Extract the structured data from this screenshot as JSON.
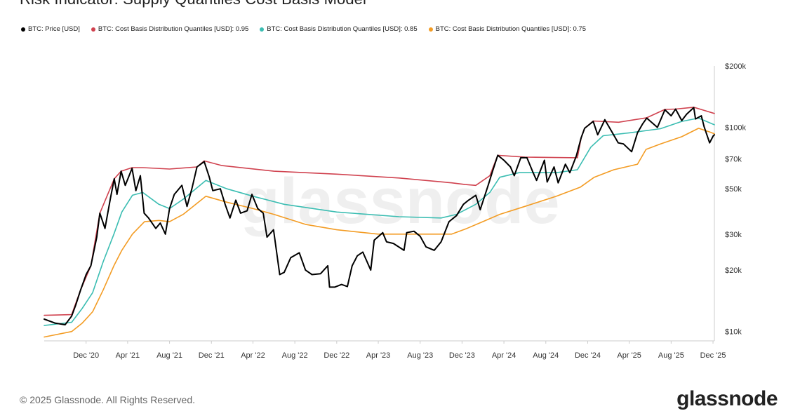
{
  "chart_data": {
    "type": "line",
    "title": "Risk Indicator: Supply Quantiles Cost Basis Model",
    "y_scale": "log",
    "ylim": [
      9000,
      200000
    ],
    "xlim": [
      "2020-08-01",
      "2025-12-05"
    ],
    "y_ticks": [
      {
        "value": 10000,
        "label": "$10k"
      },
      {
        "value": 20000,
        "label": "$20k"
      },
      {
        "value": 30000,
        "label": "$30k"
      },
      {
        "value": 50000,
        "label": "$50k"
      },
      {
        "value": 70000,
        "label": "$70k"
      },
      {
        "value": 100000,
        "label": "$100k"
      },
      {
        "value": 200000,
        "label": "$200k"
      }
    ],
    "x_ticks": [
      {
        "date": "2020-12-01",
        "label": "Dec '20"
      },
      {
        "date": "2021-04-01",
        "label": "Apr '21"
      },
      {
        "date": "2021-08-01",
        "label": "Aug '21"
      },
      {
        "date": "2021-12-01",
        "label": "Dec '21"
      },
      {
        "date": "2022-04-01",
        "label": "Apr '22"
      },
      {
        "date": "2022-08-01",
        "label": "Aug '22"
      },
      {
        "date": "2022-12-01",
        "label": "Dec '22"
      },
      {
        "date": "2023-04-01",
        "label": "Apr '23"
      },
      {
        "date": "2023-08-01",
        "label": "Aug '23"
      },
      {
        "date": "2023-12-01",
        "label": "Dec '23"
      },
      {
        "date": "2024-04-01",
        "label": "Apr '24"
      },
      {
        "date": "2024-08-01",
        "label": "Aug '24"
      },
      {
        "date": "2024-12-01",
        "label": "Dec '24"
      },
      {
        "date": "2025-04-01",
        "label": "Apr '25"
      },
      {
        "date": "2025-08-01",
        "label": "Aug '25"
      },
      {
        "date": "2025-12-01",
        "label": "Dec '25"
      }
    ],
    "series": [
      {
        "name": "BTC: Price [USD]",
        "color": "#000000",
        "points": [
          [
            "2020-08-01",
            11500
          ],
          [
            "2020-09-01",
            11000
          ],
          [
            "2020-10-01",
            10800
          ],
          [
            "2020-10-20",
            11900
          ],
          [
            "2020-11-01",
            13500
          ],
          [
            "2020-11-15",
            16000
          ],
          [
            "2020-12-01",
            19000
          ],
          [
            "2020-12-15",
            21000
          ],
          [
            "2021-01-01",
            29000
          ],
          [
            "2021-01-10",
            38000
          ],
          [
            "2021-01-25",
            32000
          ],
          [
            "2021-02-10",
            45000
          ],
          [
            "2021-02-21",
            56000
          ],
          [
            "2021-03-01",
            47000
          ],
          [
            "2021-03-13",
            61000
          ],
          [
            "2021-03-25",
            52000
          ],
          [
            "2021-04-14",
            63000
          ],
          [
            "2021-04-25",
            49000
          ],
          [
            "2021-05-08",
            58000
          ],
          [
            "2021-05-19",
            38000
          ],
          [
            "2021-06-01",
            36000
          ],
          [
            "2021-06-22",
            32000
          ],
          [
            "2021-07-05",
            34000
          ],
          [
            "2021-07-20",
            30000
          ],
          [
            "2021-08-01",
            40000
          ],
          [
            "2021-08-15",
            47000
          ],
          [
            "2021-09-06",
            52000
          ],
          [
            "2021-09-21",
            41000
          ],
          [
            "2021-10-05",
            50000
          ],
          [
            "2021-10-20",
            64000
          ],
          [
            "2021-11-10",
            68000
          ],
          [
            "2021-11-25",
            57000
          ],
          [
            "2021-12-05",
            49000
          ],
          [
            "2021-12-27",
            50000
          ],
          [
            "2022-01-10",
            42000
          ],
          [
            "2022-01-24",
            36000
          ],
          [
            "2022-02-10",
            44000
          ],
          [
            "2022-02-24",
            38000
          ],
          [
            "2022-03-15",
            39000
          ],
          [
            "2022-03-29",
            47000
          ],
          [
            "2022-04-15",
            40000
          ],
          [
            "2022-05-01",
            38000
          ],
          [
            "2022-05-12",
            29000
          ],
          [
            "2022-05-31",
            31500
          ],
          [
            "2022-06-18",
            19000
          ],
          [
            "2022-07-01",
            19500
          ],
          [
            "2022-07-20",
            23000
          ],
          [
            "2022-08-14",
            24300
          ],
          [
            "2022-09-01",
            20000
          ],
          [
            "2022-09-20",
            19000
          ],
          [
            "2022-10-15",
            19200
          ],
          [
            "2022-11-05",
            21000
          ],
          [
            "2022-11-10",
            16500
          ],
          [
            "2022-11-25",
            16500
          ],
          [
            "2022-12-15",
            17000
          ],
          [
            "2023-01-01",
            16600
          ],
          [
            "2023-01-15",
            21000
          ],
          [
            "2023-01-30",
            23500
          ],
          [
            "2023-02-15",
            24500
          ],
          [
            "2023-03-10",
            20000
          ],
          [
            "2023-03-20",
            28000
          ],
          [
            "2023-04-14",
            30500
          ],
          [
            "2023-04-25",
            27500
          ],
          [
            "2023-05-15",
            27000
          ],
          [
            "2023-06-15",
            25000
          ],
          [
            "2023-06-23",
            30500
          ],
          [
            "2023-07-14",
            31000
          ],
          [
            "2023-08-01",
            29300
          ],
          [
            "2023-08-18",
            26000
          ],
          [
            "2023-09-11",
            25000
          ],
          [
            "2023-10-01",
            27500
          ],
          [
            "2023-10-24",
            34500
          ],
          [
            "2023-11-15",
            37000
          ],
          [
            "2023-12-05",
            42000
          ],
          [
            "2023-12-20",
            44000
          ],
          [
            "2024-01-10",
            46500
          ],
          [
            "2024-01-23",
            39500
          ],
          [
            "2024-02-15",
            52000
          ],
          [
            "2024-02-28",
            61000
          ],
          [
            "2024-03-14",
            73000
          ],
          [
            "2024-04-01",
            69000
          ],
          [
            "2024-04-20",
            64000
          ],
          [
            "2024-05-01",
            58000
          ],
          [
            "2024-05-20",
            71000
          ],
          [
            "2024-06-07",
            71000
          ],
          [
            "2024-06-25",
            60000
          ],
          [
            "2024-07-05",
            55000
          ],
          [
            "2024-07-28",
            69000
          ],
          [
            "2024-08-05",
            54000
          ],
          [
            "2024-08-25",
            64000
          ],
          [
            "2024-09-06",
            53500
          ],
          [
            "2024-09-27",
            66000
          ],
          [
            "2024-10-10",
            60000
          ],
          [
            "2024-10-29",
            72500
          ],
          [
            "2024-11-12",
            89000
          ],
          [
            "2024-11-22",
            99000
          ],
          [
            "2024-12-05",
            103000
          ],
          [
            "2024-12-17",
            107000
          ],
          [
            "2024-12-30",
            92000
          ],
          [
            "2025-01-20",
            109000
          ],
          [
            "2025-02-05",
            98000
          ],
          [
            "2025-02-28",
            84000
          ],
          [
            "2025-03-15",
            83000
          ],
          [
            "2025-04-08",
            76000
          ],
          [
            "2025-04-25",
            94000
          ],
          [
            "2025-05-10",
            104000
          ],
          [
            "2025-05-22",
            111000
          ],
          [
            "2025-06-22",
            100000
          ],
          [
            "2025-07-14",
            122000
          ],
          [
            "2025-08-01",
            114000
          ],
          [
            "2025-08-14",
            123000
          ],
          [
            "2025-09-01",
            108000
          ],
          [
            "2025-09-15",
            116000
          ],
          [
            "2025-10-06",
            125000
          ],
          [
            "2025-10-11",
            110000
          ],
          [
            "2025-10-28",
            114000
          ],
          [
            "2025-11-05",
            101000
          ],
          [
            "2025-11-21",
            84000
          ],
          [
            "2025-12-02",
            91000
          ],
          [
            "2025-12-05",
            92000
          ]
        ]
      },
      {
        "name": "BTC: Cost Basis Distribution Quantiles [USD]: 0.95",
        "color": "#d0424f",
        "points": [
          [
            "2020-08-01",
            12000
          ],
          [
            "2020-10-20",
            12100
          ],
          [
            "2020-11-15",
            16000
          ],
          [
            "2020-12-15",
            21000
          ],
          [
            "2021-01-10",
            38000
          ],
          [
            "2021-02-21",
            56000
          ],
          [
            "2021-03-13",
            61000
          ],
          [
            "2021-04-14",
            63500
          ],
          [
            "2021-05-15",
            63500
          ],
          [
            "2021-08-01",
            62500
          ],
          [
            "2021-10-20",
            64000
          ],
          [
            "2021-11-10",
            68500
          ],
          [
            "2022-01-01",
            65000
          ],
          [
            "2022-06-01",
            61000
          ],
          [
            "2022-12-01",
            59000
          ],
          [
            "2023-06-01",
            56500
          ],
          [
            "2023-11-01",
            53500
          ],
          [
            "2023-12-10",
            52500
          ],
          [
            "2024-01-10",
            52000
          ],
          [
            "2024-02-20",
            58000
          ],
          [
            "2024-03-14",
            73000
          ],
          [
            "2024-06-01",
            71500
          ],
          [
            "2024-11-01",
            71000
          ],
          [
            "2024-11-12",
            89000
          ],
          [
            "2024-11-22",
            99000
          ],
          [
            "2024-12-17",
            107500
          ],
          [
            "2025-03-01",
            106000
          ],
          [
            "2025-05-22",
            111500
          ],
          [
            "2025-07-14",
            122500
          ],
          [
            "2025-08-14",
            123000
          ],
          [
            "2025-10-06",
            125500
          ],
          [
            "2025-12-05",
            117000
          ]
        ]
      },
      {
        "name": "BTC: Cost Basis Distribution Quantiles [USD]: 0.85",
        "color": "#3bbdb2",
        "points": [
          [
            "2020-08-01",
            10700
          ],
          [
            "2020-10-20",
            11100
          ],
          [
            "2020-11-20",
            13000
          ],
          [
            "2020-12-20",
            15500
          ],
          [
            "2021-01-20",
            22000
          ],
          [
            "2021-02-20",
            30000
          ],
          [
            "2021-03-15",
            38500
          ],
          [
            "2021-04-15",
            46500
          ],
          [
            "2021-05-15",
            48000
          ],
          [
            "2021-07-01",
            42000
          ],
          [
            "2021-08-01",
            40000
          ],
          [
            "2021-09-10",
            44500
          ],
          [
            "2021-11-15",
            55000
          ],
          [
            "2022-01-15",
            50000
          ],
          [
            "2022-04-01",
            46000
          ],
          [
            "2022-07-01",
            42000
          ],
          [
            "2022-12-01",
            38500
          ],
          [
            "2023-06-01",
            36500
          ],
          [
            "2023-10-01",
            36000
          ],
          [
            "2023-11-15",
            37500
          ],
          [
            "2024-01-10",
            42000
          ],
          [
            "2024-02-20",
            48000
          ],
          [
            "2024-03-20",
            57000
          ],
          [
            "2024-05-15",
            60000
          ],
          [
            "2024-09-01",
            60000
          ],
          [
            "2024-11-01",
            62000
          ],
          [
            "2024-12-10",
            80000
          ],
          [
            "2025-01-15",
            91000
          ],
          [
            "2025-04-01",
            94000
          ],
          [
            "2025-07-01",
            98500
          ],
          [
            "2025-09-01",
            107000
          ],
          [
            "2025-10-20",
            111000
          ],
          [
            "2025-12-05",
            103000
          ]
        ]
      },
      {
        "name": "BTC: Cost Basis Distribution Quantiles [USD]: 0.75",
        "color": "#f39c24",
        "points": [
          [
            "2020-08-01",
            9400
          ],
          [
            "2020-10-20",
            10000
          ],
          [
            "2020-11-20",
            11000
          ],
          [
            "2020-12-20",
            12500
          ],
          [
            "2021-01-20",
            16000
          ],
          [
            "2021-02-20",
            21000
          ],
          [
            "2021-03-15",
            25000
          ],
          [
            "2021-04-15",
            30000
          ],
          [
            "2021-05-20",
            34500
          ],
          [
            "2021-07-01",
            35000
          ],
          [
            "2021-08-01",
            34500
          ],
          [
            "2021-09-10",
            37500
          ],
          [
            "2021-11-15",
            46000
          ],
          [
            "2022-01-15",
            43000
          ],
          [
            "2022-04-01",
            40000
          ],
          [
            "2022-06-01",
            37500
          ],
          [
            "2022-09-01",
            33500
          ],
          [
            "2022-12-01",
            31500
          ],
          [
            "2023-04-01",
            30000
          ],
          [
            "2023-08-01",
            30000
          ],
          [
            "2023-11-01",
            30000
          ],
          [
            "2023-12-15",
            32000
          ],
          [
            "2024-01-30",
            34500
          ],
          [
            "2024-03-20",
            37500
          ],
          [
            "2024-06-01",
            41000
          ],
          [
            "2024-09-01",
            46000
          ],
          [
            "2024-11-10",
            51000
          ],
          [
            "2024-12-20",
            57000
          ],
          [
            "2025-02-15",
            62000
          ],
          [
            "2025-04-25",
            66000
          ],
          [
            "2025-05-20",
            78000
          ],
          [
            "2025-07-01",
            83000
          ],
          [
            "2025-09-01",
            90000
          ],
          [
            "2025-10-20",
            99000
          ],
          [
            "2025-11-21",
            95000
          ],
          [
            "2025-12-05",
            93000
          ]
        ]
      }
    ],
    "watermark": "glassnode"
  },
  "footer": {
    "copyright": "© 2025 Glassnode. All Rights Reserved.",
    "brand": "glassnode"
  }
}
